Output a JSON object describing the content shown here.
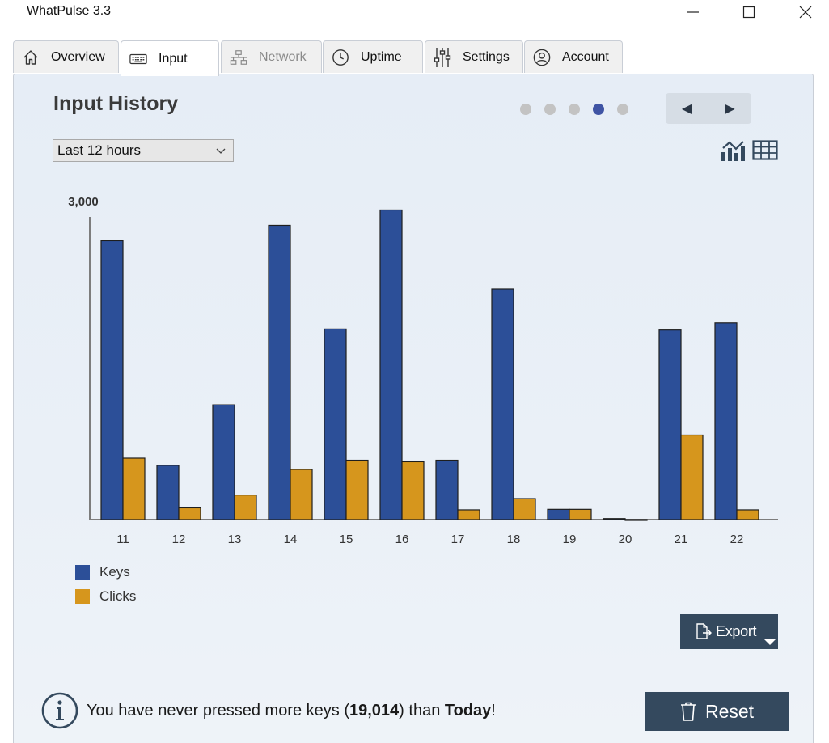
{
  "window": {
    "title": "WhatPulse 3.3",
    "controls": {
      "minimize": "minimize",
      "maximize": "maximize",
      "close": "close"
    }
  },
  "tabs": [
    {
      "label": "Overview",
      "icon": "home-icon",
      "state": "normal"
    },
    {
      "label": "Input",
      "icon": "keyboard-icon",
      "state": "active"
    },
    {
      "label": "Network",
      "icon": "network-icon",
      "state": "disabled"
    },
    {
      "label": "Uptime",
      "icon": "clock-icon",
      "state": "normal"
    },
    {
      "label": "Settings",
      "icon": "sliders-icon",
      "state": "normal"
    },
    {
      "label": "Account",
      "icon": "user-circle-icon",
      "state": "normal"
    }
  ],
  "page": {
    "title": "Input History",
    "pager": {
      "count": 5,
      "active_index": 3,
      "prev": "◀",
      "next": "▶"
    },
    "range_select": {
      "value": "Last 12 hours"
    },
    "view_toggle": {
      "chart": "chart-view-icon",
      "table": "table-view-icon"
    }
  },
  "chart_data": {
    "type": "bar",
    "title": "",
    "xlabel": "",
    "ylabel": "",
    "y_top_label": "3,000",
    "ylim": [
      0,
      3000
    ],
    "categories": [
      "11",
      "12",
      "13",
      "14",
      "15",
      "16",
      "17",
      "18",
      "19",
      "20",
      "21",
      "22"
    ],
    "series": [
      {
        "name": "Keys",
        "color": "#2c4f98",
        "values": [
          2720,
          530,
          1120,
          2870,
          1860,
          3020,
          580,
          2250,
          100,
          10,
          1850,
          1920
        ]
      },
      {
        "name": "Clicks",
        "color": "#d6961d",
        "values": [
          600,
          115,
          240,
          490,
          580,
          565,
          95,
          205,
          100,
          0,
          825,
          95
        ]
      }
    ],
    "legend_position": "bottom-left"
  },
  "legend": [
    {
      "label": "Keys",
      "color": "#2c4f98"
    },
    {
      "label": "Clicks",
      "color": "#d6961d"
    }
  ],
  "export": {
    "label": "Export"
  },
  "message": {
    "prefix": "You have never pressed more keys (",
    "count": "19,014",
    "middle": ") than ",
    "day": "Today",
    "suffix": "!"
  },
  "reset": {
    "label": "Reset"
  },
  "colors": {
    "button_bg": "#34495e",
    "active_dot": "#3f54a4",
    "keys": "#2c4f98",
    "clicks": "#d6961d"
  }
}
